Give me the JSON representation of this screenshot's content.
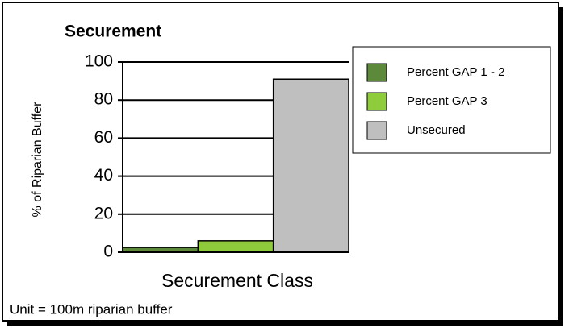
{
  "chart_data": {
    "type": "bar",
    "title": "Securement",
    "xlabel": "Securement Class",
    "ylabel": "% of Riparian Buffer",
    "note": "Unit = 100m riparian buffer",
    "categories": [
      null
    ],
    "series": [
      {
        "name": "Percent GAP 1 - 2",
        "color": "#5c8a3a",
        "values": [
          2.5
        ]
      },
      {
        "name": "Percent GAP 3",
        "color": "#8fcc3c",
        "values": [
          6
        ]
      },
      {
        "name": "Unsecured",
        "color": "#bfbfbf",
        "values": [
          91
        ]
      }
    ],
    "ylim": [
      0,
      100
    ],
    "yticks": [
      0,
      20,
      40,
      60,
      80,
      100
    ],
    "grid": true,
    "legend": "right"
  }
}
